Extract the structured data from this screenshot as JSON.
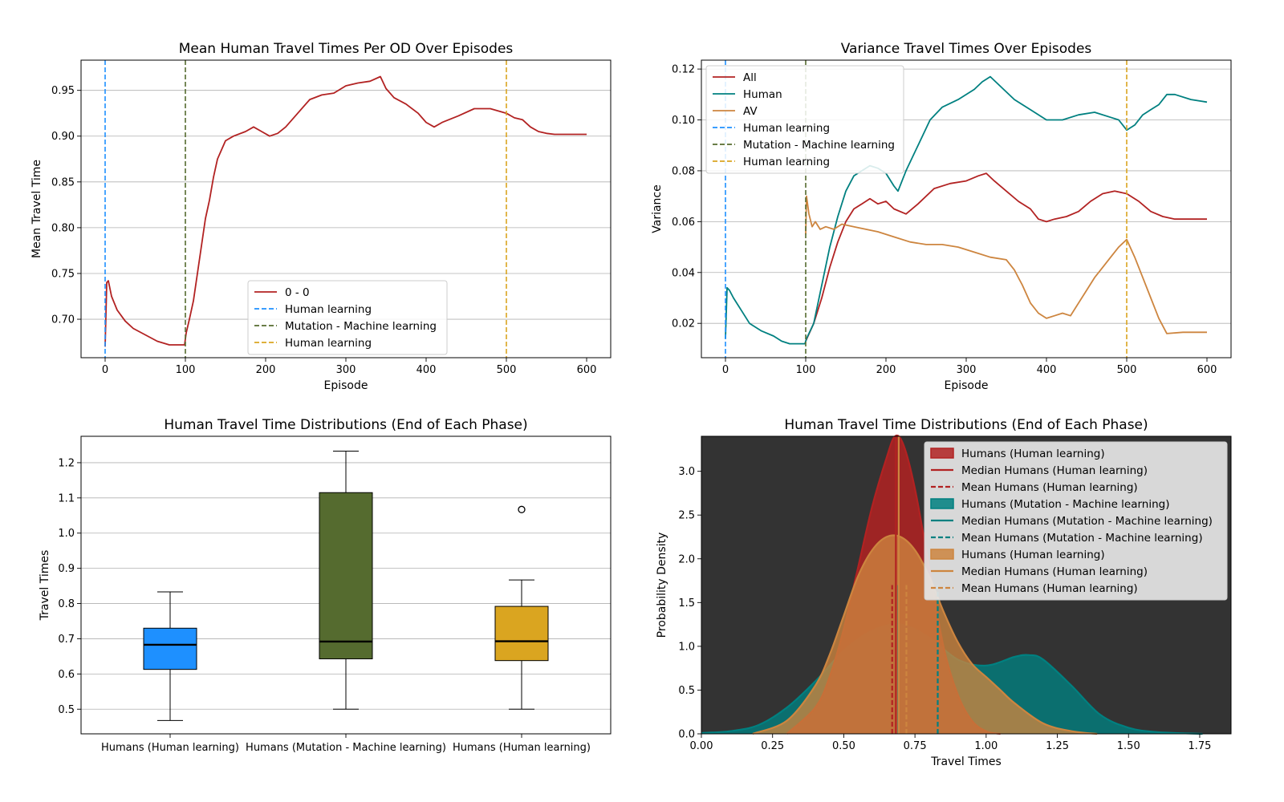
{
  "chart_data": [
    {
      "type": "line",
      "title": "Mean Human Travel Times Per OD Over Episodes",
      "xlabel": "Episode",
      "ylabel": "Mean Travel Time",
      "xlim": [
        -30,
        630
      ],
      "ylim": [
        0.658,
        0.983
      ],
      "xticks": [
        0,
        100,
        200,
        300,
        400,
        500,
        600
      ],
      "yticks": [
        0.7,
        0.75,
        0.8,
        0.85,
        0.9,
        0.95
      ],
      "ytick_labels": [
        "0.70",
        "0.75",
        "0.80",
        "0.85",
        "0.90",
        "0.95"
      ],
      "grid": "y",
      "legend_position": "lower-center",
      "series": [
        {
          "name": "0 - 0",
          "color": "#b22222",
          "x": [
            0,
            2,
            4,
            8,
            15,
            25,
            35,
            50,
            65,
            80,
            99,
            101,
            105,
            110,
            115,
            120,
            125,
            130,
            135,
            140,
            145,
            150,
            160,
            175,
            185,
            195,
            205,
            215,
            225,
            240,
            255,
            270,
            285,
            300,
            315,
            330,
            343,
            350,
            360,
            375,
            390,
            400,
            410,
            420,
            440,
            460,
            480,
            500,
            510,
            520,
            530,
            540,
            550,
            560,
            575,
            590,
            600
          ],
          "y": [
            0.67,
            0.74,
            0.742,
            0.725,
            0.71,
            0.698,
            0.69,
            0.683,
            0.676,
            0.672,
            0.672,
            0.685,
            0.7,
            0.72,
            0.75,
            0.78,
            0.81,
            0.83,
            0.855,
            0.875,
            0.885,
            0.895,
            0.9,
            0.905,
            0.91,
            0.905,
            0.9,
            0.903,
            0.91,
            0.925,
            0.94,
            0.945,
            0.947,
            0.955,
            0.958,
            0.96,
            0.965,
            0.952,
            0.942,
            0.935,
            0.925,
            0.915,
            0.91,
            0.915,
            0.922,
            0.93,
            0.93,
            0.925,
            0.92,
            0.918,
            0.91,
            0.905,
            0.903,
            0.902,
            0.902,
            0.902,
            0.902
          ]
        },
        {
          "name": "Human learning",
          "style": "dashed",
          "color": "#1e90ff",
          "x_vline": 0
        },
        {
          "name": "Mutation - Machine learning",
          "style": "dashed",
          "color": "#556b2f",
          "x_vline": 100
        },
        {
          "name": "Human learning",
          "style": "dashed",
          "color": "#daa520",
          "x_vline": 500
        }
      ]
    },
    {
      "type": "line",
      "title": "Variance Travel Times Over Episodes",
      "xlabel": "Episode",
      "ylabel": "Variance",
      "xlim": [
        -30,
        630
      ],
      "ylim": [
        0.0065,
        0.1235
      ],
      "xticks": [
        0,
        100,
        200,
        300,
        400,
        500,
        600
      ],
      "yticks": [
        0.02,
        0.04,
        0.06,
        0.08,
        0.1,
        0.12
      ],
      "ytick_labels": [
        "0.02",
        "0.04",
        "0.06",
        "0.08",
        "0.10",
        "0.12"
      ],
      "grid": "y",
      "legend_position": "upper-left",
      "series": [
        {
          "name": "All",
          "color": "#b22222",
          "x": [
            100,
            110,
            120,
            130,
            140,
            150,
            160,
            170,
            180,
            190,
            200,
            210,
            225,
            240,
            260,
            280,
            300,
            315,
            325,
            335,
            350,
            365,
            380,
            390,
            400,
            410,
            425,
            440,
            455,
            470,
            485,
            500,
            515,
            530,
            545,
            560,
            575,
            600
          ],
          "y": [
            0.013,
            0.02,
            0.03,
            0.042,
            0.052,
            0.06,
            0.065,
            0.067,
            0.069,
            0.067,
            0.068,
            0.065,
            0.063,
            0.067,
            0.073,
            0.075,
            0.076,
            0.078,
            0.079,
            0.076,
            0.072,
            0.068,
            0.065,
            0.061,
            0.06,
            0.061,
            0.062,
            0.064,
            0.068,
            0.071,
            0.072,
            0.071,
            0.068,
            0.064,
            0.062,
            0.061,
            0.061,
            0.061
          ]
        },
        {
          "name": "Human",
          "color": "#008080",
          "x": [
            0,
            2,
            5,
            10,
            20,
            30,
            45,
            60,
            70,
            80,
            99,
            101,
            110,
            120,
            130,
            140,
            150,
            160,
            170,
            180,
            190,
            200,
            210,
            215,
            225,
            240,
            255,
            270,
            290,
            310,
            320,
            330,
            340,
            360,
            380,
            400,
            420,
            440,
            460,
            480,
            490,
            500,
            510,
            520,
            530,
            540,
            550,
            560,
            580,
            600
          ],
          "y": [
            0.014,
            0.034,
            0.033,
            0.03,
            0.025,
            0.02,
            0.017,
            0.015,
            0.013,
            0.012,
            0.012,
            0.014,
            0.02,
            0.035,
            0.05,
            0.062,
            0.072,
            0.078,
            0.08,
            0.082,
            0.081,
            0.079,
            0.074,
            0.072,
            0.08,
            0.09,
            0.1,
            0.105,
            0.108,
            0.112,
            0.115,
            0.117,
            0.114,
            0.108,
            0.104,
            0.1,
            0.1,
            0.102,
            0.103,
            0.101,
            0.1,
            0.096,
            0.098,
            0.102,
            0.104,
            0.106,
            0.11,
            0.11,
            0.108,
            0.107
          ]
        },
        {
          "name": "AV",
          "color": "#cd853f",
          "x": [
            100,
            101,
            104,
            108,
            112,
            118,
            125,
            135,
            145,
            160,
            175,
            190,
            210,
            230,
            250,
            270,
            290,
            310,
            330,
            350,
            360,
            370,
            380,
            390,
            400,
            410,
            420,
            430,
            440,
            450,
            460,
            470,
            480,
            490,
            500,
            510,
            520,
            530,
            540,
            550,
            570,
            600
          ],
          "y": [
            0.055,
            0.07,
            0.063,
            0.058,
            0.06,
            0.057,
            0.058,
            0.057,
            0.059,
            0.058,
            0.057,
            0.056,
            0.054,
            0.052,
            0.051,
            0.051,
            0.05,
            0.048,
            0.046,
            0.045,
            0.041,
            0.035,
            0.028,
            0.024,
            0.022,
            0.023,
            0.024,
            0.023,
            0.028,
            0.033,
            0.038,
            0.042,
            0.046,
            0.05,
            0.053,
            0.046,
            0.038,
            0.03,
            0.022,
            0.016,
            0.0165,
            0.0165
          ]
        },
        {
          "name": "Human learning",
          "style": "dashed",
          "color": "#1e90ff",
          "x_vline": 0
        },
        {
          "name": "Mutation - Machine learning",
          "style": "dashed",
          "color": "#556b2f",
          "x_vline": 100
        },
        {
          "name": "Human learning",
          "style": "dashed",
          "color": "#daa520",
          "x_vline": 500
        }
      ]
    },
    {
      "type": "box",
      "title": "Human Travel Time Distributions (End of Each Phase)",
      "xlabel": "",
      "ylabel": "Travel Times",
      "ylim": [
        0.43,
        1.275
      ],
      "yticks": [
        0.5,
        0.6,
        0.7,
        0.8,
        0.9,
        1.0,
        1.1,
        1.2
      ],
      "ytick_labels": [
        "0.5",
        "0.6",
        "0.7",
        "0.8",
        "0.9",
        "1.0",
        "1.1",
        "1.2"
      ],
      "grid": "y",
      "categories": [
        "Humans (Human learning)",
        "Humans (Mutation - Machine learning)",
        "Humans (Human learning)"
      ],
      "boxes": [
        {
          "whislo": 0.468,
          "q1": 0.613,
          "med": 0.683,
          "q3": 0.73,
          "whishi": 0.833,
          "fliers": [],
          "color": "#1e90ff"
        },
        {
          "whislo": 0.5,
          "q1": 0.643,
          "med": 0.692,
          "q3": 1.115,
          "whishi": 1.233,
          "fliers": [],
          "color": "#556b2f"
        },
        {
          "whislo": 0.5,
          "q1": 0.638,
          "med": 0.693,
          "q3": 0.792,
          "whishi": 0.867,
          "fliers": [
            1.067
          ],
          "color": "#daa520"
        }
      ]
    },
    {
      "type": "area",
      "title": "Human Travel Time Distributions (End of Each Phase)",
      "xlabel": "Travel Times",
      "ylabel": "Probability Density",
      "xlim": [
        0.0,
        1.86
      ],
      "ylim": [
        0.0,
        3.4
      ],
      "xticks": [
        0.0,
        0.25,
        0.5,
        0.75,
        1.0,
        1.25,
        1.5,
        1.75
      ],
      "xtick_labels": [
        "0.00",
        "0.25",
        "0.50",
        "0.75",
        "1.00",
        "1.25",
        "1.50",
        "1.75"
      ],
      "yticks": [
        0.0,
        0.5,
        1.0,
        1.5,
        2.0,
        2.5,
        3.0
      ],
      "ytick_labels": [
        "0.0",
        "0.5",
        "1.0",
        "1.5",
        "2.0",
        "2.5",
        "3.0"
      ],
      "background": "#333333",
      "legend_position": "upper-right",
      "series": [
        {
          "name": "Humans (Human learning)",
          "color": "#b22222",
          "median": 0.683,
          "mean": 0.67,
          "x": [
            0.3,
            0.4,
            0.45,
            0.5,
            0.55,
            0.6,
            0.65,
            0.68,
            0.71,
            0.75,
            0.8,
            0.85,
            0.9,
            0.95,
            1.0,
            1.05
          ],
          "y": [
            0.0,
            0.3,
            0.65,
            1.2,
            1.9,
            2.6,
            3.15,
            3.4,
            3.3,
            2.8,
            1.9,
            1.0,
            0.45,
            0.15,
            0.03,
            0.0
          ]
        },
        {
          "name": "Humans (Mutation - Machine learning)",
          "color": "#008080",
          "median": 0.692,
          "mean": 0.83,
          "x": [
            0.0,
            0.1,
            0.2,
            0.3,
            0.4,
            0.5,
            0.6,
            0.7,
            0.8,
            0.9,
            1.0,
            1.1,
            1.15,
            1.2,
            1.3,
            1.4,
            1.5,
            1.6,
            1.76
          ],
          "y": [
            0.01,
            0.03,
            0.1,
            0.3,
            0.6,
            0.95,
            1.18,
            1.25,
            1.1,
            0.85,
            0.78,
            0.88,
            0.9,
            0.85,
            0.55,
            0.22,
            0.07,
            0.02,
            0.0
          ]
        },
        {
          "name": "Humans (Human learning)",
          "color": "#cd853f",
          "median": 0.693,
          "mean": 0.72,
          "x": [
            0.18,
            0.3,
            0.4,
            0.45,
            0.5,
            0.55,
            0.6,
            0.65,
            0.7,
            0.75,
            0.8,
            0.85,
            0.9,
            0.95,
            1.0,
            1.05,
            1.1,
            1.2,
            1.3,
            1.39
          ],
          "y": [
            0.0,
            0.15,
            0.55,
            0.9,
            1.35,
            1.8,
            2.1,
            2.25,
            2.25,
            2.1,
            1.8,
            1.4,
            1.05,
            0.8,
            0.65,
            0.5,
            0.35,
            0.12,
            0.03,
            0.0
          ]
        }
      ],
      "legend_entries": [
        "Humans (Human learning)",
        "Median Humans (Human learning)",
        "Mean Humans (Human learning)",
        "Humans (Mutation - Machine learning)",
        "Median Humans (Mutation - Machine learning)",
        "Mean Humans (Mutation - Machine learning)",
        "Humans (Human learning)",
        "Median Humans (Human learning)",
        "Mean Humans (Human learning)"
      ]
    }
  ]
}
